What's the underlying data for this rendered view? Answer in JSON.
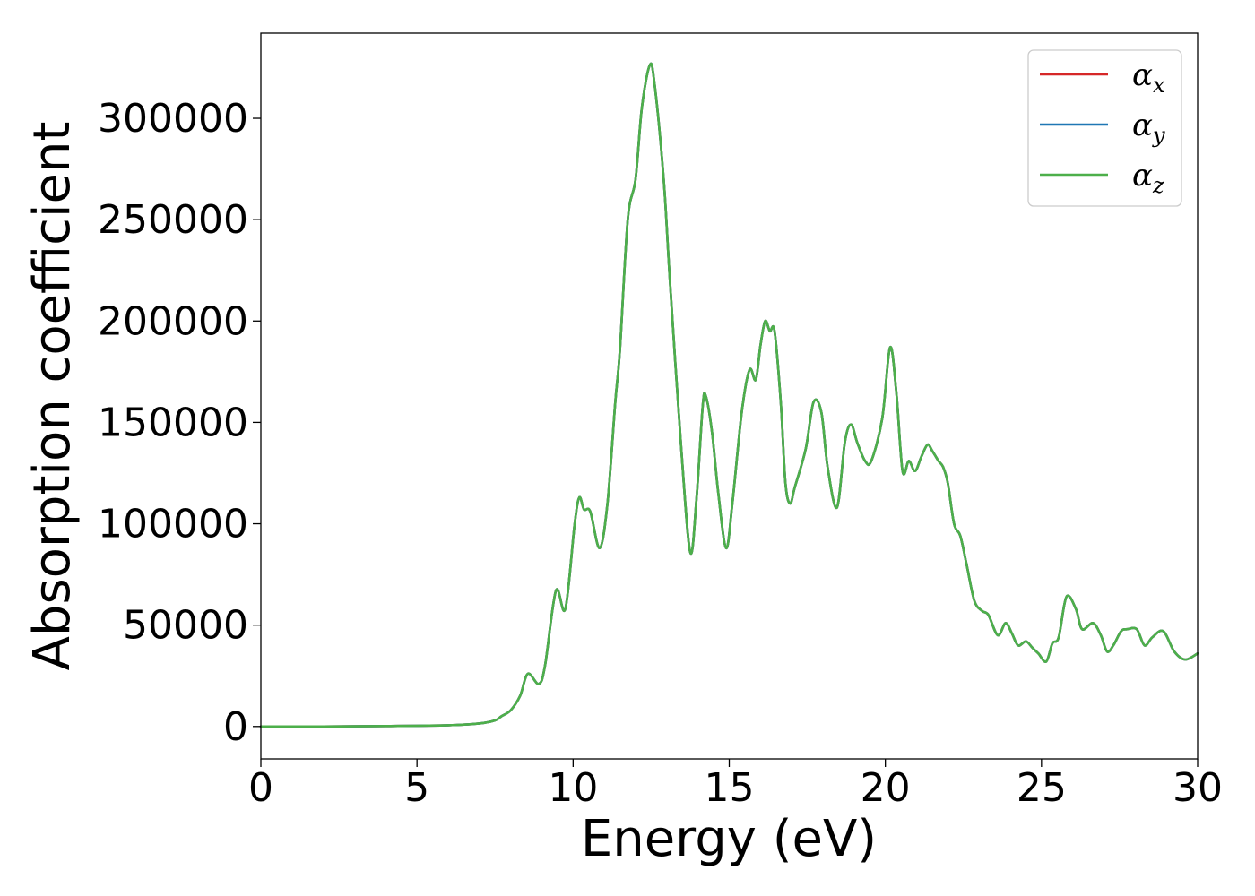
{
  "chart_data": {
    "type": "line",
    "xlabel": "Energy (eV)",
    "ylabel": "Absorption coefficient",
    "xlim": [
      0,
      30
    ],
    "ylim": [
      -16000,
      342000
    ],
    "xticks": [
      0,
      5,
      10,
      15,
      20,
      25,
      30
    ],
    "yticks": [
      0,
      50000,
      100000,
      150000,
      200000,
      250000,
      300000
    ],
    "xtick_labels": [
      "0",
      "5",
      "10",
      "15",
      "20",
      "25",
      "30"
    ],
    "ytick_labels": [
      "0",
      "50000",
      "100000",
      "150000",
      "200000",
      "250000",
      "300000"
    ],
    "grid": false,
    "legend_position": "top-right",
    "series": [
      {
        "name": "α",
        "subscript": "x",
        "color": "#d62728"
      },
      {
        "name": "α",
        "subscript": "y",
        "color": "#1f77b4"
      },
      {
        "name": "α",
        "subscript": "z",
        "color": "#4daf4a"
      }
    ],
    "x": [
      0,
      2,
      4,
      6,
      7,
      7.5,
      7.7,
      8.0,
      8.3,
      8.55,
      8.9,
      9.1,
      9.45,
      9.75,
      10.05,
      10.2,
      10.35,
      10.55,
      10.85,
      11.1,
      11.35,
      11.5,
      11.75,
      12.0,
      12.2,
      12.45,
      12.6,
      12.9,
      13.1,
      13.45,
      13.75,
      13.95,
      14.15,
      14.25,
      14.45,
      14.65,
      14.9,
      15.1,
      15.4,
      15.65,
      15.85,
      16.0,
      16.15,
      16.3,
      16.45,
      16.65,
      16.8,
      16.95,
      17.1,
      17.45,
      17.7,
      17.95,
      18.15,
      18.45,
      18.7,
      18.9,
      19.1,
      19.35,
      19.55,
      19.9,
      20.15,
      20.35,
      20.55,
      20.75,
      20.95,
      21.15,
      21.35,
      21.5,
      21.7,
      21.85,
      22.0,
      22.2,
      22.4,
      22.6,
      22.85,
      23.1,
      23.3,
      23.6,
      23.85,
      24.05,
      24.25,
      24.5,
      24.7,
      24.9,
      25.15,
      25.35,
      25.55,
      25.8,
      26.1,
      26.3,
      26.65,
      26.9,
      27.1,
      27.3,
      27.55,
      27.75,
      28.05,
      28.3,
      28.55,
      28.9,
      29.25,
      29.6,
      30.0
    ],
    "values": [
      0,
      0,
      200,
      600,
      1500,
      3000,
      5000,
      8000,
      15000,
      26000,
      21000,
      30000,
      67000,
      58000,
      100000,
      113000,
      107000,
      106000,
      88000,
      110000,
      160000,
      186000,
      250000,
      270000,
      305000,
      326000,
      318000,
      270000,
      220000,
      140000,
      86000,
      112000,
      158000,
      163000,
      145000,
      115000,
      88000,
      110000,
      155000,
      176000,
      171000,
      188000,
      200000,
      195000,
      195000,
      160000,
      120000,
      110000,
      118000,
      137000,
      160000,
      155000,
      128000,
      108000,
      140000,
      149000,
      140000,
      131000,
      131000,
      152000,
      187000,
      165000,
      126000,
      131000,
      126000,
      133000,
      139000,
      136000,
      131000,
      128000,
      120000,
      100000,
      94000,
      80000,
      62000,
      57000,
      55000,
      45000,
      51000,
      46000,
      40000,
      42000,
      39000,
      36000,
      32000,
      41000,
      44000,
      64000,
      58000,
      48000,
      51000,
      45000,
      37000,
      40000,
      47000,
      48000,
      48000,
      40000,
      44000,
      47000,
      37000,
      33000,
      36000
    ]
  }
}
